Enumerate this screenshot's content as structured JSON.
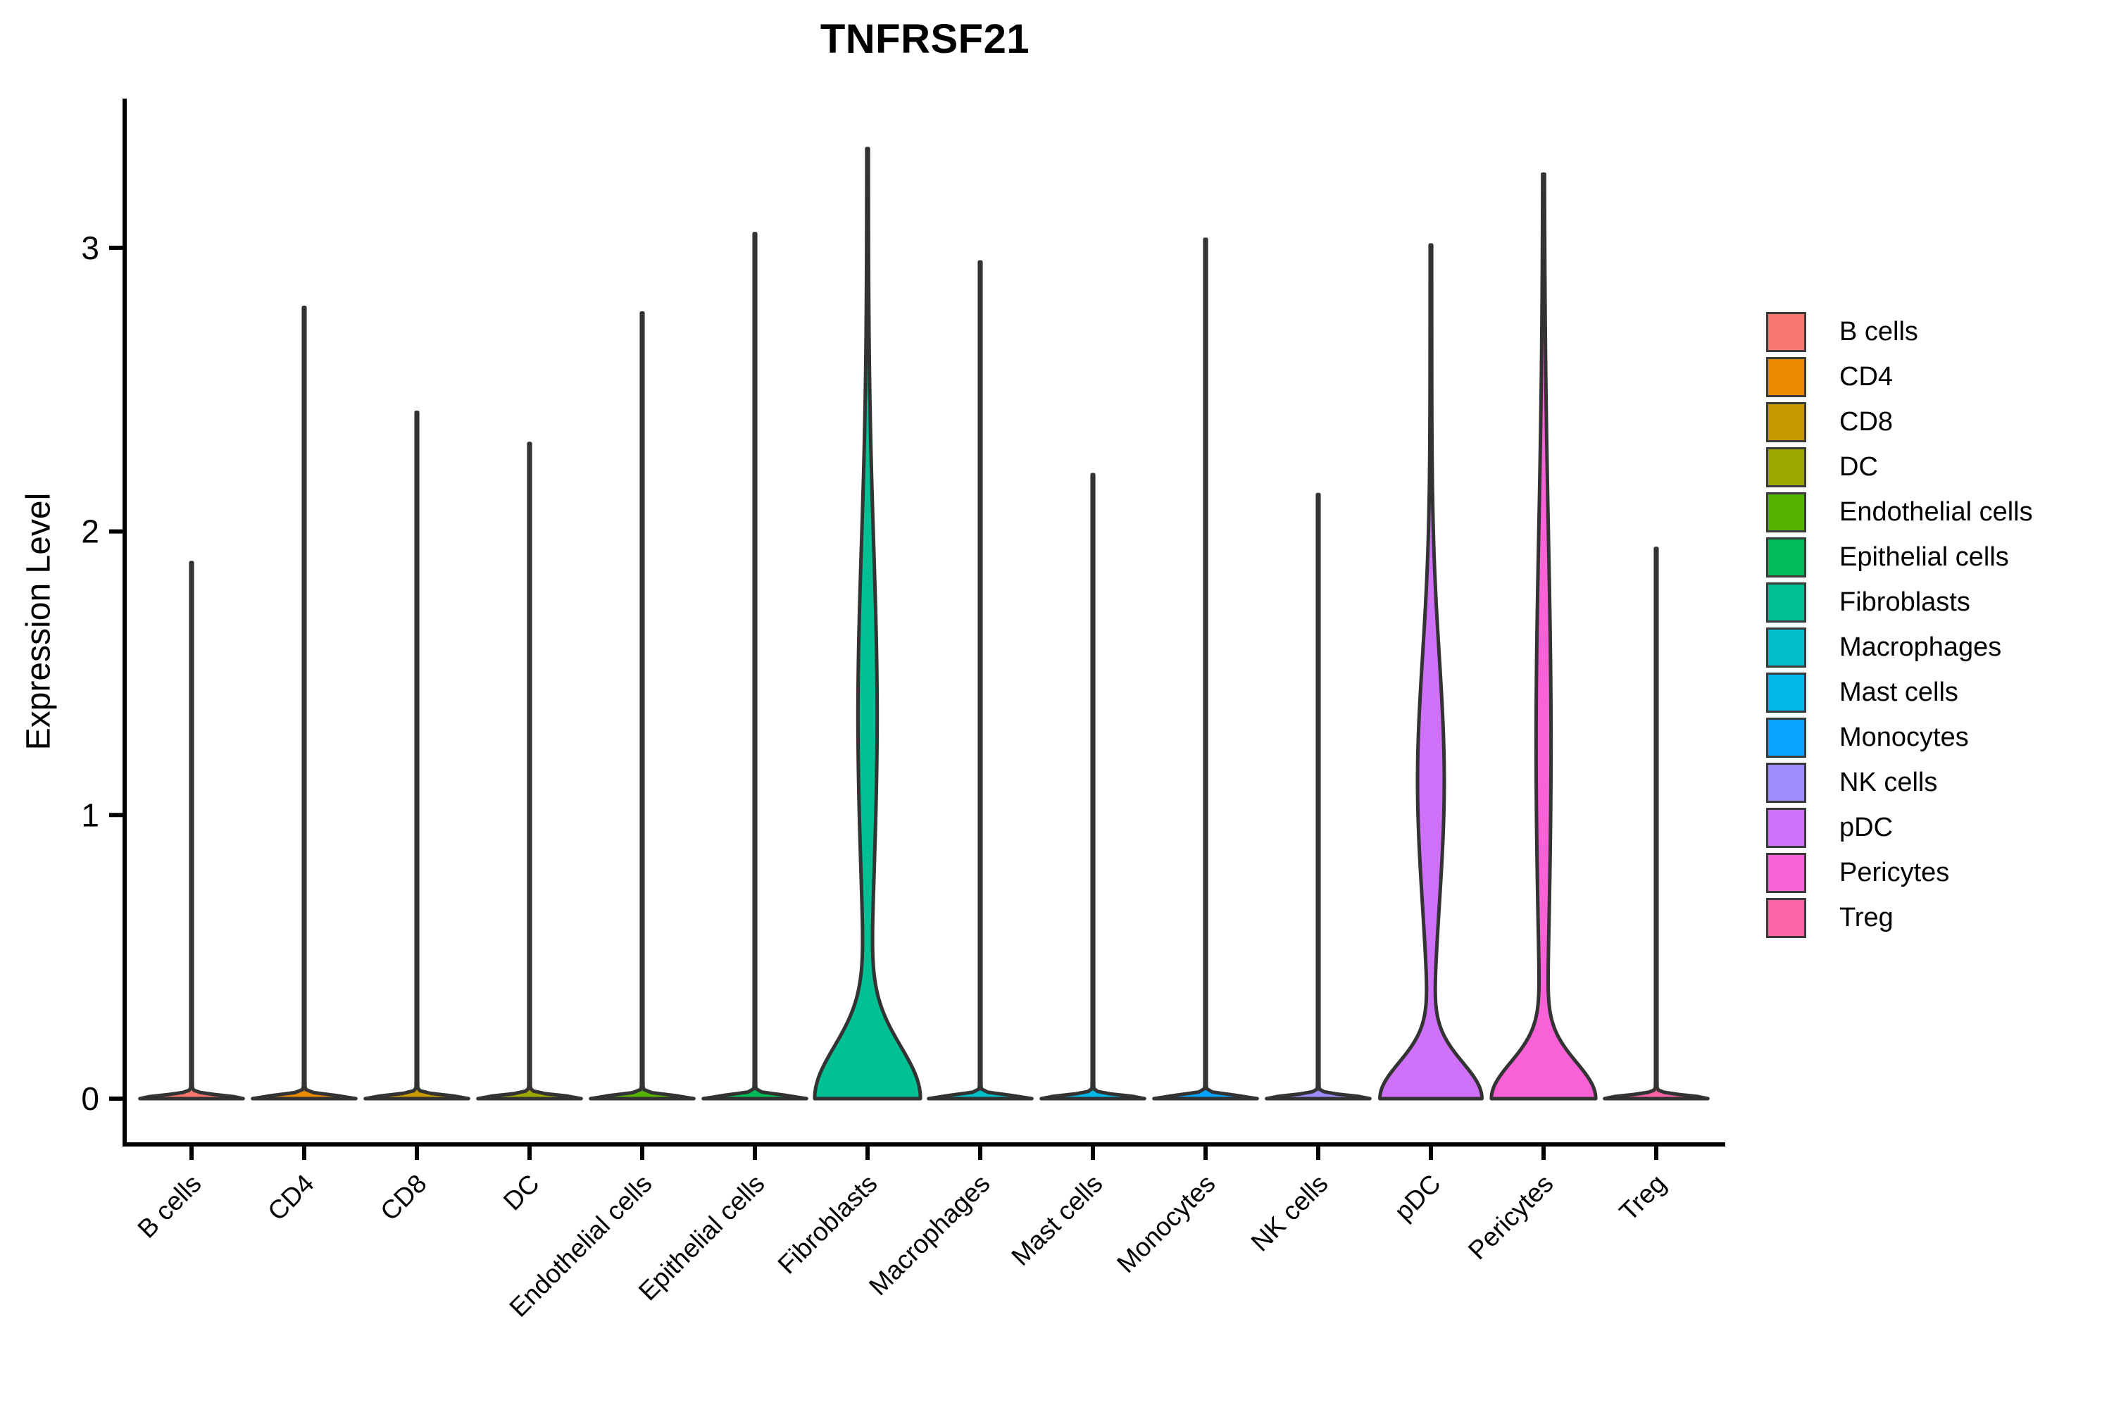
{
  "figure": {
    "title": "TNFRSF21",
    "y_axis_label": "Expression Level"
  },
  "chart_data": {
    "type": "violin",
    "title": "TNFRSF21",
    "xlabel": "",
    "ylabel": "Expression Level",
    "y_ticks": [
      "0",
      "1",
      "2",
      "3"
    ],
    "y_tick_values": [
      0,
      1,
      2,
      3
    ],
    "ylim": [
      -0.16,
      3.53
    ],
    "grid": false,
    "legend_position": "right",
    "violin_outline_color": "#333333",
    "axis_color": "#000000",
    "categories": [
      {
        "label": "B cells",
        "color": "#F8766D",
        "max_expression": 1.89,
        "shape": "spike",
        "profile": {
          "base_amp": 0.95,
          "base_sigma": 0.016,
          "belly_amp": 0,
          "belly_center": 0,
          "belly_sigma": 1
        }
      },
      {
        "label": "CD4",
        "color": "#E98A00",
        "max_expression": 2.79,
        "shape": "spike",
        "profile": {
          "base_amp": 0.95,
          "base_sigma": 0.016,
          "belly_amp": 0,
          "belly_center": 0,
          "belly_sigma": 1
        }
      },
      {
        "label": "CD8",
        "color": "#C79A00",
        "max_expression": 2.42,
        "shape": "spike",
        "profile": {
          "base_amp": 0.95,
          "base_sigma": 0.016,
          "belly_amp": 0,
          "belly_center": 0,
          "belly_sigma": 1
        }
      },
      {
        "label": "DC",
        "color": "#9CA700",
        "max_expression": 2.31,
        "shape": "spike",
        "profile": {
          "base_amp": 0.95,
          "base_sigma": 0.016,
          "belly_amp": 0,
          "belly_center": 0,
          "belly_sigma": 1
        }
      },
      {
        "label": "Endothelial cells",
        "color": "#55B300",
        "max_expression": 2.77,
        "shape": "spike",
        "profile": {
          "base_amp": 0.95,
          "base_sigma": 0.016,
          "belly_amp": 0,
          "belly_center": 0,
          "belly_sigma": 1
        }
      },
      {
        "label": "Epithelial cells",
        "color": "#00BC58",
        "max_expression": 3.05,
        "shape": "spike",
        "profile": {
          "base_amp": 0.95,
          "base_sigma": 0.016,
          "belly_amp": 0,
          "belly_center": 0,
          "belly_sigma": 1
        }
      },
      {
        "label": "Fibroblasts",
        "color": "#00C094",
        "max_expression": 3.35,
        "shape": "wide_base_belly",
        "profile": {
          "base_amp": 0.96,
          "base_sigma": 0.26,
          "belly_amp": 0.165,
          "belly_center": 1.35,
          "belly_sigma": 0.85
        }
      },
      {
        "label": "Macrophages",
        "color": "#00BFC8",
        "max_expression": 2.95,
        "shape": "spike",
        "profile": {
          "base_amp": 0.95,
          "base_sigma": 0.016,
          "belly_amp": 0,
          "belly_center": 0,
          "belly_sigma": 1
        }
      },
      {
        "label": "Mast cells",
        "color": "#00B8E8",
        "max_expression": 2.2,
        "shape": "spike",
        "profile": {
          "base_amp": 0.95,
          "base_sigma": 0.016,
          "belly_amp": 0,
          "belly_center": 0,
          "belly_sigma": 1
        }
      },
      {
        "label": "Monocytes",
        "color": "#06A4FF",
        "max_expression": 3.03,
        "shape": "spike",
        "profile": {
          "base_amp": 0.95,
          "base_sigma": 0.016,
          "belly_amp": 0,
          "belly_center": 0,
          "belly_sigma": 1
        }
      },
      {
        "label": "NK cells",
        "color": "#A18CFC",
        "max_expression": 2.13,
        "shape": "spike",
        "profile": {
          "base_amp": 0.95,
          "base_sigma": 0.016,
          "belly_amp": 0,
          "belly_center": 0,
          "belly_sigma": 1
        }
      },
      {
        "label": "pDC",
        "color": "#CF70F8",
        "max_expression": 3.01,
        "shape": "wide_base_belly",
        "profile": {
          "base_amp": 0.93,
          "base_sigma": 0.18,
          "belly_amp": 0.235,
          "belly_center": 1.12,
          "belly_sigma": 0.62
        }
      },
      {
        "label": "Pericytes",
        "color": "#F961D6",
        "max_expression": 3.26,
        "shape": "wide_base_column",
        "profile": {
          "base_amp": 0.93,
          "base_sigma": 0.18,
          "belly_amp": 0.125,
          "belly_center": 1.25,
          "belly_sigma": 1.05
        }
      },
      {
        "label": "Treg",
        "color": "#FC64A6",
        "max_expression": 1.94,
        "shape": "spike",
        "profile": {
          "base_amp": 0.95,
          "base_sigma": 0.016,
          "belly_amp": 0,
          "belly_center": 0,
          "belly_sigma": 1
        }
      }
    ]
  }
}
